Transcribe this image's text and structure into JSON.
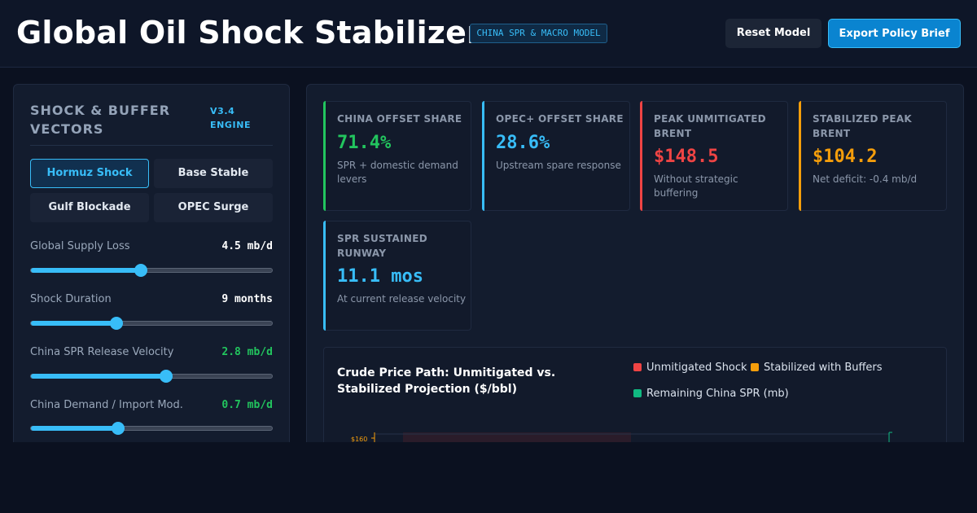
{
  "header": {
    "title": "Global Oil Shock Stabilizer",
    "badge": "CHINA SPR & MACRO MODEL",
    "reset_label": "Reset Model",
    "export_label": "Export Policy Brief"
  },
  "sidebar": {
    "title": "SHOCK & BUFFER VECTORS",
    "engine": "V3.4 ENGINE",
    "scenarios": [
      {
        "label": "Hormuz Shock",
        "active": true
      },
      {
        "label": "Base Stable",
        "active": false
      },
      {
        "label": "Gulf Blockade",
        "active": false
      },
      {
        "label": "OPEC Surge",
        "active": false
      }
    ],
    "sliders": [
      {
        "label": "Global Supply Loss",
        "value": "4.5 mb/d",
        "level": 0.455,
        "color": "#ffffff"
      },
      {
        "label": "Shock Duration",
        "value": "9 months",
        "level": 0.355,
        "color": "#ffffff"
      },
      {
        "label": "China SPR Release Velocity",
        "value": "2.8 mb/d",
        "level": 0.56,
        "color": "#22c55e"
      },
      {
        "label": "China Demand / Import Mod.",
        "value": "0.7 mb/d",
        "level": 0.36,
        "color": "#22c55e"
      }
    ]
  },
  "kpis": [
    {
      "label": "CHINA OFFSET SHARE",
      "value": "71.4%",
      "note": "SPR + domestic demand levers",
      "color": "#22c55e"
    },
    {
      "label": "OPEC+ OFFSET SHARE",
      "value": "28.6%",
      "note": "Upstream spare response",
      "color": "#38bdf8"
    },
    {
      "label": "PEAK UNMITIGATED BRENT",
      "value": "$148.5",
      "note": "Without strategic buffering",
      "color": "#ef4444"
    },
    {
      "label": "STABILIZED PEAK BRENT",
      "value": "$104.2",
      "note": "Net deficit: -0.4 mb/d",
      "color": "#f59e0b"
    },
    {
      "label": "SPR SUSTAINED RUNWAY",
      "value": "11.1 mos",
      "note": "At current release velocity",
      "color": "#38bdf8"
    }
  ],
  "chart": {
    "title": "Crude Price Path: Unmitigated vs. Stabilized Projection ($/bbl)",
    "legend": [
      {
        "label": "Unmitigated Shock",
        "color": "#ef4444"
      },
      {
        "label": "Stabilized with Buffers",
        "color": "#f59e0b"
      },
      {
        "label": "Remaining China SPR (mb)",
        "color": "#10b981"
      }
    ],
    "ytick_top": "$160"
  }
}
